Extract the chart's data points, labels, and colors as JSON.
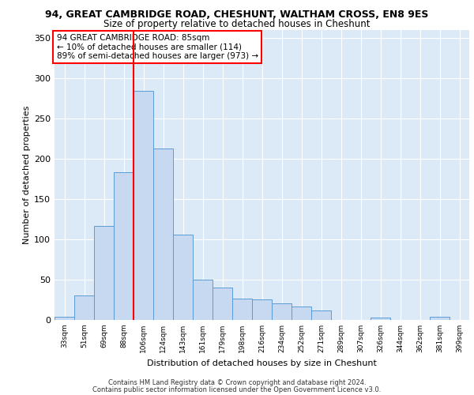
{
  "title_line1": "94, GREAT CAMBRIDGE ROAD, CHESHUNT, WALTHAM CROSS, EN8 9ES",
  "title_line2": "Size of property relative to detached houses in Cheshunt",
  "xlabel": "Distribution of detached houses by size in Cheshunt",
  "ylabel": "Number of detached properties",
  "categories": [
    "33sqm",
    "51sqm",
    "69sqm",
    "88sqm",
    "106sqm",
    "124sqm",
    "143sqm",
    "161sqm",
    "179sqm",
    "198sqm",
    "216sqm",
    "234sqm",
    "252sqm",
    "271sqm",
    "289sqm",
    "307sqm",
    "326sqm",
    "344sqm",
    "362sqm",
    "381sqm",
    "399sqm"
  ],
  "values": [
    4,
    30,
    117,
    183,
    284,
    213,
    106,
    50,
    40,
    26,
    25,
    21,
    17,
    12,
    0,
    0,
    3,
    0,
    0,
    4,
    0
  ],
  "bar_color": "#c6d9f0",
  "bar_edge_color": "#5b9bd5",
  "vline_x": 3.5,
  "vline_color": "#ff0000",
  "annotation_text": "94 GREAT CAMBRIDGE ROAD: 85sqm\n← 10% of detached houses are smaller (114)\n89% of semi-detached houses are larger (973) →",
  "annotation_box_color": "#ffffff",
  "annotation_box_edge": "#ff0000",
  "ylim": [
    0,
    360
  ],
  "yticks": [
    0,
    50,
    100,
    150,
    200,
    250,
    300,
    350
  ],
  "footer_line1": "Contains HM Land Registry data © Crown copyright and database right 2024.",
  "footer_line2": "Contains public sector information licensed under the Open Government Licence v3.0.",
  "fig_facecolor": "#ffffff",
  "plot_bg_color": "#dce9f7"
}
